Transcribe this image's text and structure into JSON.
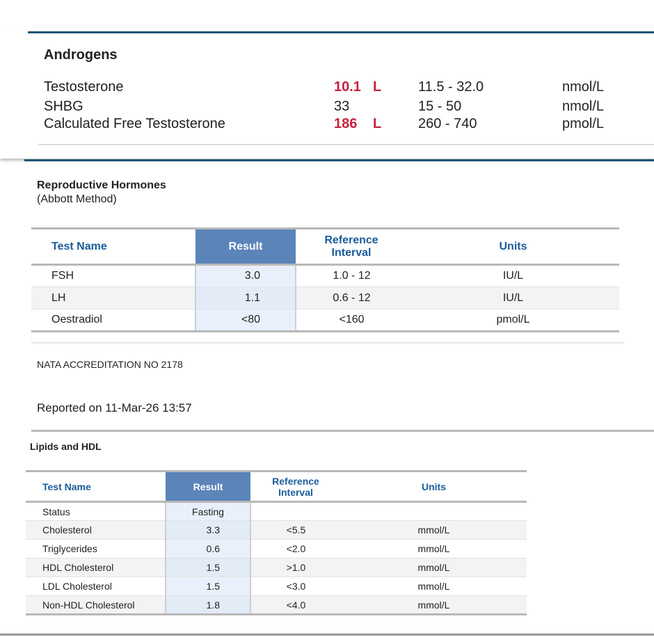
{
  "androgens": {
    "title": "Androgens",
    "rows": [
      {
        "test": "Testosterone",
        "result": "10.1",
        "flag": "L",
        "range": "11.5 - 32.0",
        "units": "nmol/L"
      },
      {
        "test": "SHBG",
        "result": "33",
        "range": "15 - 50",
        "units": "nmol/L"
      },
      {
        "test": "Calculated Free Testosterone",
        "result": "186",
        "flag": "L",
        "range": "260 - 740",
        "units": "pmol/L"
      }
    ]
  },
  "reproductive": {
    "title": "Reproductive Hormones",
    "subtitle": "(Abbott Method)",
    "headers": [
      "Test Name",
      "Result",
      "Reference Interval",
      "Units"
    ],
    "rows": [
      [
        "FSH",
        "3.0",
        "1.0 - 12",
        "IU/L"
      ],
      [
        "LH",
        "1.1",
        "0.6 - 12",
        "IU/L"
      ],
      [
        "Oestradiol",
        "<80",
        "<160",
        "pmol/L"
      ]
    ]
  },
  "accreditation": "NATA ACCREDITATION NO 2178",
  "reported": "Reported on 11-Mar-26 13:57",
  "lipids": {
    "title": "Lipids and HDL",
    "headers": [
      "Test Name",
      "Result",
      "Reference Interval",
      "Units"
    ],
    "rows": [
      [
        "Status",
        "Fasting"
      ],
      [
        "Cholesterol",
        "3.3",
        "<5.5",
        "mmol/L"
      ],
      [
        "Triglycerides",
        "0.6",
        "<2.0",
        "mmol/L"
      ],
      [
        "HDL Cholesterol",
        "1.5",
        ">1.0",
        "mmol/L"
      ],
      [
        "LDL Cholesterol",
        "1.5",
        "<3.0",
        "mmol/L"
      ],
      [
        "Non-HDL Cholesterol",
        "1.8",
        "<4.0",
        "mmol/L"
      ]
    ]
  }
}
